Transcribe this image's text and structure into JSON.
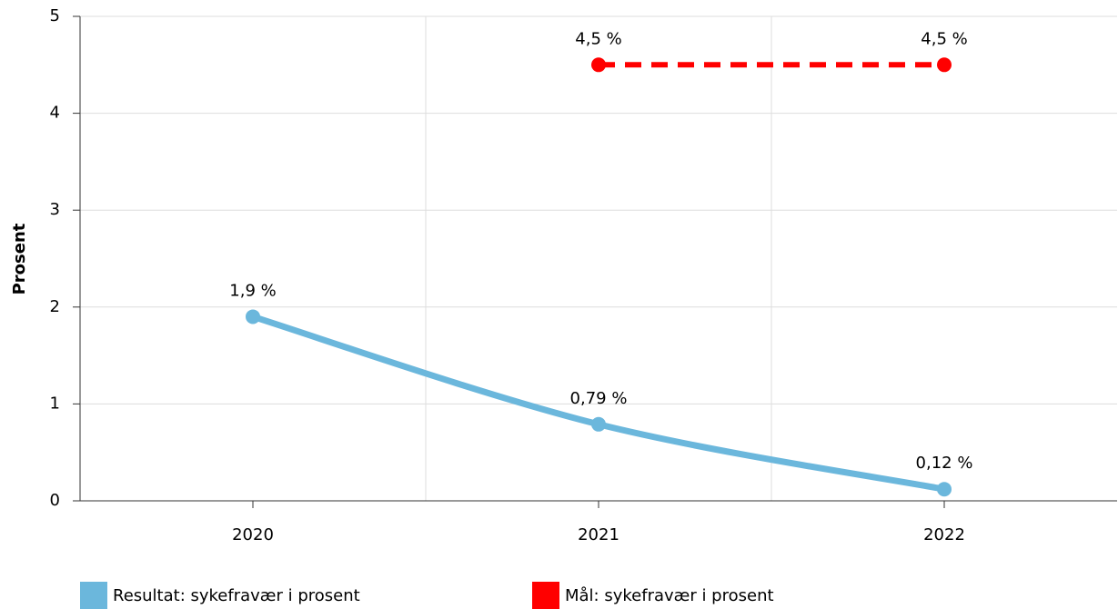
{
  "chart_data": {
    "type": "line",
    "y_label": "Prosent",
    "categories": [
      "2020",
      "2021",
      "2022"
    ],
    "series": [
      {
        "name": "Resultat: sykefravær i prosent",
        "color": "#6bb7dc",
        "style": "solid",
        "smooth": true,
        "values": [
          1.9,
          0.79,
          0.12
        ],
        "value_labels": [
          "1,9 %",
          "0,79 %",
          "0,12 %"
        ]
      },
      {
        "name": "Mål: sykefravær i prosent",
        "color": "#ff0000",
        "style": "dashed",
        "smooth": false,
        "values": [
          null,
          4.5,
          4.5
        ],
        "value_labels": [
          null,
          "4,5 %",
          "4,5 %"
        ]
      }
    ],
    "ylim": [
      0,
      5
    ],
    "yticks": [
      0,
      1,
      2,
      3,
      4,
      5
    ],
    "grid": true,
    "legend": "bottom"
  }
}
